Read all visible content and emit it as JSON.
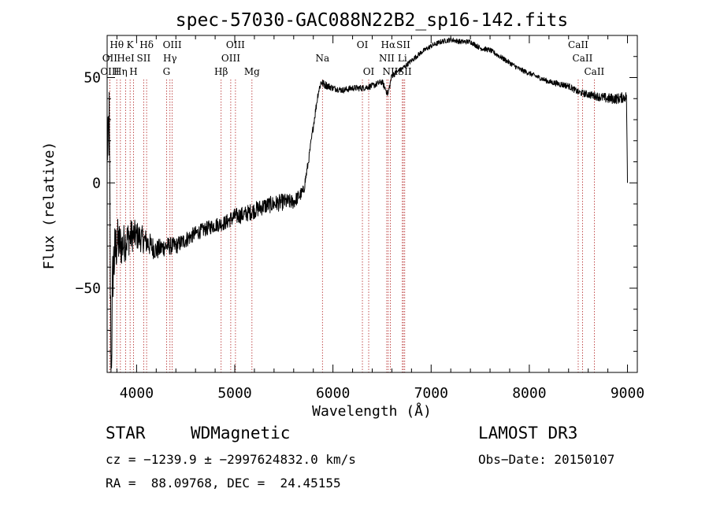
{
  "chart_data": {
    "type": "line",
    "title": "spec-57030-GAC088N22B2_sp16-142.fits",
    "xlabel": "Wavelength (Å)",
    "ylabel": "Flux (relative)",
    "xlim": [
      3700,
      9100
    ],
    "ylim": [
      -90,
      70
    ],
    "x_ticks": [
      4000,
      5000,
      6000,
      7000,
      8000,
      9000
    ],
    "x_tick_labels": [
      "4000",
      "5000",
      "6000",
      "7000",
      "8000",
      "9000"
    ],
    "y_ticks": [
      -50,
      0,
      50
    ],
    "y_tick_labels": [
      "−50",
      "0",
      "50"
    ],
    "spectrum_anchors": {
      "x": [
        3700,
        3720,
        3740,
        3760,
        3800,
        3850,
        3900,
        3950,
        4000,
        4100,
        4200,
        4300,
        4400,
        4500,
        4600,
        4700,
        4800,
        4900,
        5000,
        5100,
        5200,
        5300,
        5400,
        5500,
        5600,
        5700,
        5750,
        5800,
        5850,
        5880,
        5900,
        6000,
        6100,
        6200,
        6300,
        6400,
        6500,
        6560,
        6600,
        6700,
        6800,
        6900,
        7000,
        7100,
        7200,
        7300,
        7400,
        7500,
        7600,
        7700,
        7800,
        7900,
        8000,
        8100,
        8200,
        8300,
        8400,
        8500,
        8600,
        8700,
        8800,
        8900,
        8990,
        9000
      ],
      "y": [
        10,
        30,
        -90,
        -40,
        -28,
        -30,
        -27,
        -25,
        -25,
        -28,
        -32,
        -30,
        -30,
        -27,
        -24,
        -22,
        -20,
        -19,
        -16,
        -15,
        -13,
        -11,
        -10,
        -9,
        -9,
        -4,
        10,
        27,
        43,
        48,
        47,
        45,
        44,
        45,
        45,
        46,
        48,
        42,
        51,
        54,
        58,
        62,
        65,
        67,
        68,
        67,
        67,
        64,
        63,
        60,
        57,
        54,
        52,
        50,
        48,
        47,
        46,
        43,
        42,
        41,
        40,
        40,
        41,
        0
      ],
      "noise_amplitude": [
        2,
        25,
        20,
        18,
        12,
        10,
        9,
        8,
        7,
        6,
        5,
        4.5,
        4,
        4,
        3.5,
        3.5,
        3.5,
        3.5,
        4,
        4,
        4,
        4,
        4,
        4,
        3.5,
        3,
        2,
        2,
        2,
        2,
        2,
        1.5,
        1.5,
        1.5,
        1.5,
        1.5,
        1.5,
        1.5,
        1.5,
        1.2,
        1.2,
        1.2,
        1.2,
        1.2,
        1.2,
        1.2,
        1.2,
        1.2,
        1.2,
        1.2,
        1.2,
        1.2,
        1.2,
        1.2,
        1.2,
        1.5,
        1.5,
        1.5,
        1.8,
        2,
        2.5,
        2.5,
        2.5,
        0
      ]
    },
    "lines": [
      {
        "name": "Hθ",
        "wave": 3798,
        "row": 0
      },
      {
        "name": "OII",
        "wave": 3727,
        "row": 1
      },
      {
        "name": "OIII",
        "wave": 3727,
        "row": 2
      },
      {
        "name": "Hη",
        "wave": 3835,
        "row": 2
      },
      {
        "name": "HeI",
        "wave": 3889,
        "row": 1
      },
      {
        "name": "K",
        "wave": 3934,
        "row": 0
      },
      {
        "name": "H",
        "wave": 3969,
        "row": 2
      },
      {
        "name": "SII",
        "wave": 4072,
        "row": 1
      },
      {
        "name": "Hδ",
        "wave": 4102,
        "row": 0
      },
      {
        "name": "OIII",
        "wave": 4363,
        "row": 0
      },
      {
        "name": "Hγ",
        "wave": 4340,
        "row": 1
      },
      {
        "name": "G",
        "wave": 4305,
        "row": 2
      },
      {
        "name": "Hβ",
        "wave": 4861,
        "row": 2
      },
      {
        "name": "OIII",
        "wave": 4959,
        "row": 1
      },
      {
        "name": "OIII",
        "wave": 5007,
        "row": 0
      },
      {
        "name": "Mg",
        "wave": 5175,
        "row": 2
      },
      {
        "name": "Na",
        "wave": 5893,
        "row": 1
      },
      {
        "name": "OI",
        "wave": 6300,
        "row": 0
      },
      {
        "name": "OI",
        "wave": 6364,
        "row": 2
      },
      {
        "name": "Hα",
        "wave": 6563,
        "row": 0
      },
      {
        "name": "NII",
        "wave": 6548,
        "row": 1
      },
      {
        "name": "NII",
        "wave": 6584,
        "row": 2
      },
      {
        "name": "SII",
        "wave": 6717,
        "row": 0
      },
      {
        "name": "Li",
        "wave": 6707,
        "row": 1
      },
      {
        "name": "SII",
        "wave": 6731,
        "row": 2
      },
      {
        "name": "CaII",
        "wave": 8498,
        "row": 0
      },
      {
        "name": "CaII",
        "wave": 8542,
        "row": 1
      },
      {
        "name": "CaII",
        "wave": 8662,
        "row": 2
      }
    ]
  },
  "footer": {
    "object_type": "STAR",
    "subclass": "WDMagnetic",
    "survey": "LAMOST DR3",
    "redshift_line": "cz = −1239.9 ± −2997624832.0 km/s",
    "obs_date_line": "Obs−Date: 20150107",
    "coords_line": "RA =  88.09768, DEC =  24.45155"
  },
  "colors": {
    "spectrum": "#000000",
    "line_marker": "#b22222",
    "axis": "#000000"
  }
}
